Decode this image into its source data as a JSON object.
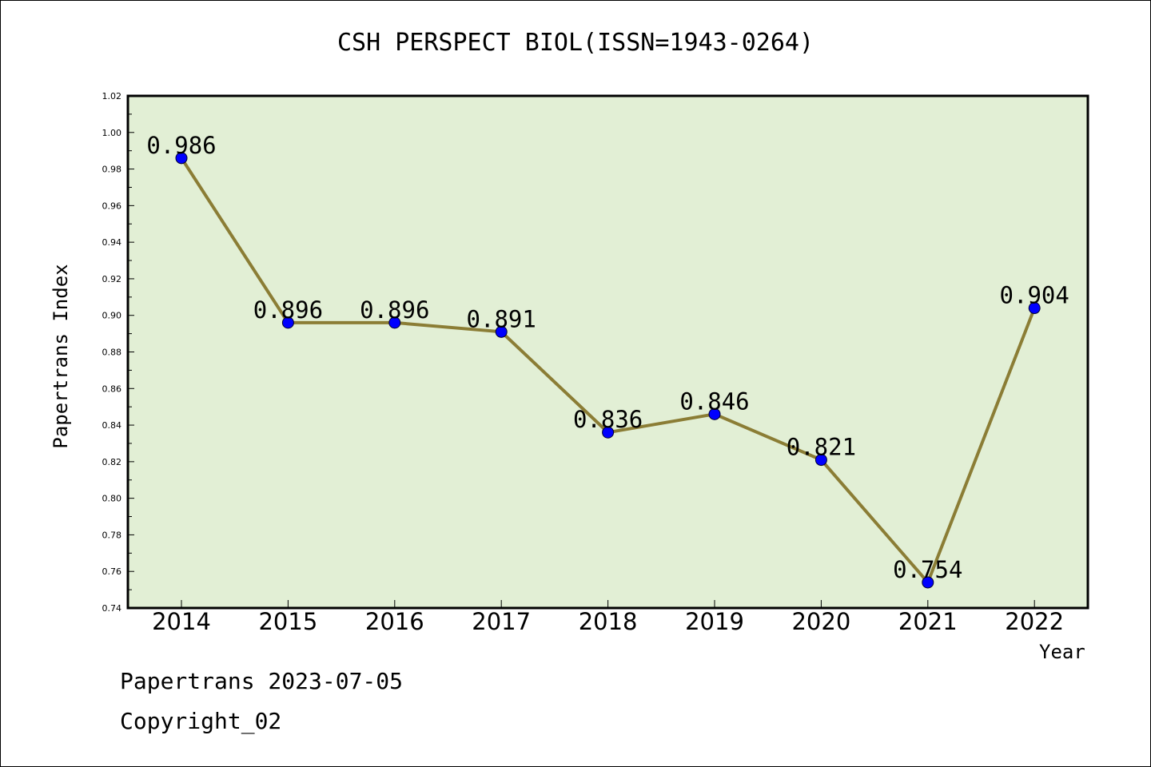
{
  "chart_data": {
    "type": "line",
    "title": "CSH PERSPECT BIOL(ISSN=1943-0264)",
    "xlabel": "Year",
    "ylabel": "Papertrans Index",
    "categories": [
      "2014",
      "2015",
      "2016",
      "2017",
      "2018",
      "2019",
      "2020",
      "2021",
      "2022"
    ],
    "series": [
      {
        "values": [
          0.986,
          0.896,
          0.896,
          0.891,
          0.836,
          0.846,
          0.821,
          0.754,
          0.904
        ],
        "data_labels": [
          "0.986",
          "0.896",
          "0.896",
          "0.891",
          "0.836",
          "0.846",
          "0.821",
          "0.754",
          "0.904"
        ]
      }
    ],
    "ylim": [
      0.74,
      1.02
    ],
    "yticks": [
      "0.74",
      "0.76",
      "0.78",
      "0.80",
      "0.82",
      "0.84",
      "0.86",
      "0.88",
      "0.90",
      "0.92",
      "0.94",
      "0.96",
      "0.98",
      "1.00",
      "1.02"
    ],
    "grid": false,
    "legend": "none",
    "colors": {
      "plot_background": "#e2efd5",
      "line": "#8b7d35",
      "marker": "#0000ff"
    }
  },
  "footer": {
    "line1": "Papertrans 2023-07-05",
    "line2": "Copyright_02"
  }
}
